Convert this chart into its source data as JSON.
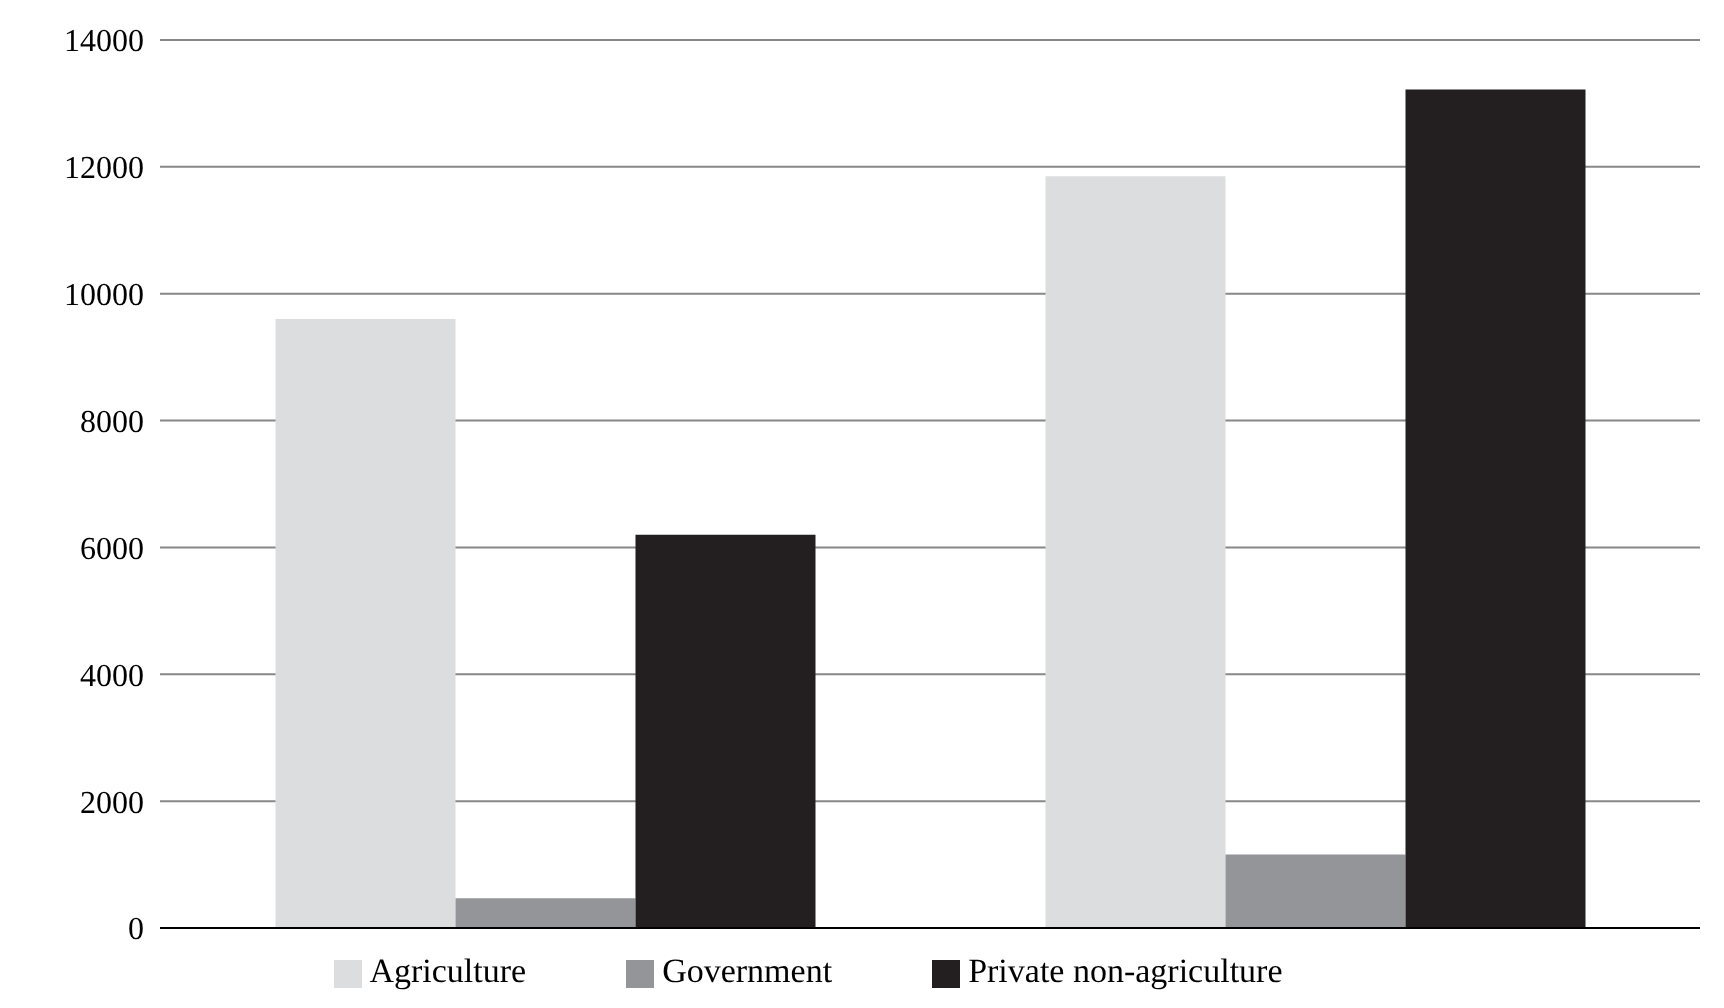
{
  "chart_data": {
    "type": "bar",
    "categories": [
      null,
      null
    ],
    "series": [
      {
        "name": "Agriculture",
        "color": "#dcdddf",
        "values": [
          9600,
          11850
        ]
      },
      {
        "name": "Government",
        "color": "#939598",
        "values": [
          470,
          1160
        ]
      },
      {
        "name": "Private non-agriculture",
        "color": "#231f20",
        "values": [
          6200,
          13220
        ]
      }
    ],
    "ylim": [
      0,
      14000
    ],
    "yticks": [
      0,
      2000,
      4000,
      6000,
      8000,
      10000,
      12000,
      14000
    ],
    "grid": "y",
    "legend": "bottom"
  }
}
